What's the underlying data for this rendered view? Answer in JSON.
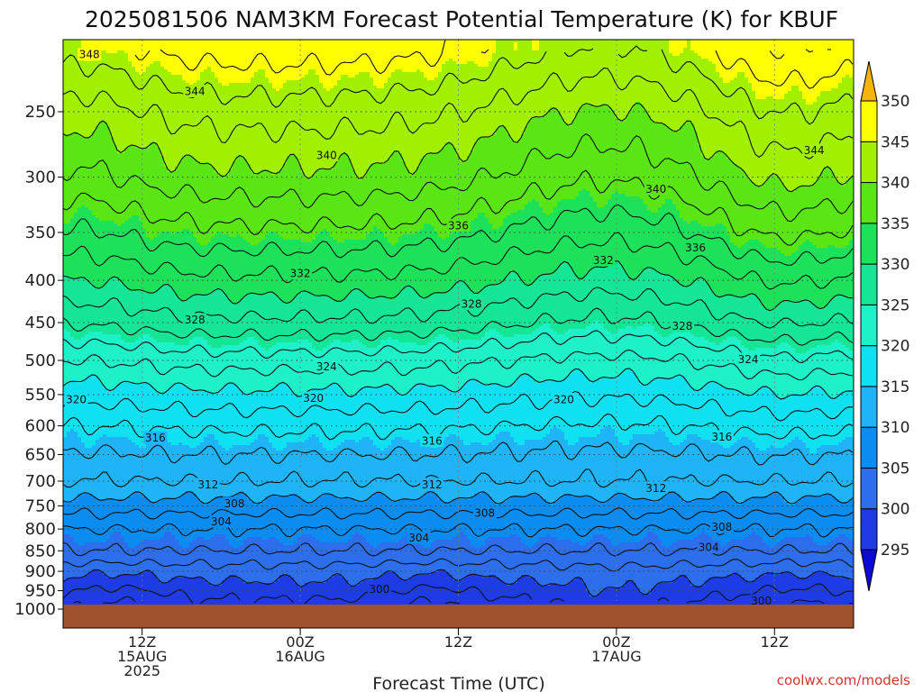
{
  "chart_data": {
    "type": "heatmap",
    "title": "2025081506 NAM3KM Forecast Potential Temperature (K) for KBUF",
    "xlabel": "Forecast Time (UTC)",
    "ylabel": "",
    "credit": "coolwx.com/models",
    "y_axis": {
      "scale": "pressure (hPa), inverted",
      "ticks": [
        "250",
        "300",
        "350",
        "400",
        "450",
        "500",
        "550",
        "600",
        "650",
        "700",
        "750",
        "800",
        "850",
        "900",
        "950",
        "1000"
      ],
      "ylim": [
        1000,
        210
      ]
    },
    "x_axis": {
      "ticks": [
        {
          "hour": 12,
          "lines": [
            "12Z",
            "15AUG",
            "2025"
          ]
        },
        {
          "hour": 24,
          "lines": [
            "00Z",
            "16AUG"
          ]
        },
        {
          "hour": 36,
          "lines": [
            "12Z"
          ]
        },
        {
          "hour": 48,
          "lines": [
            "00Z",
            "17AUG"
          ]
        },
        {
          "hour": 60,
          "lines": [
            "12Z"
          ]
        }
      ],
      "xlim_hours": [
        6,
        66
      ]
    },
    "colorbar": {
      "ticks": [
        "295",
        "300",
        "305",
        "310",
        "315",
        "320",
        "325",
        "330",
        "335",
        "340",
        "345",
        "350"
      ],
      "levels": [
        295,
        300,
        305,
        310,
        315,
        320,
        325,
        330,
        335,
        340,
        345,
        350
      ],
      "colors": [
        "#0a0ad2",
        "#1e3ce6",
        "#2d6eec",
        "#0a8cf0",
        "#1eb4f5",
        "#0fe1f0",
        "#1ef0c8",
        "#14e696",
        "#1ee15a",
        "#5ae614",
        "#a0f000",
        "#ffff00",
        "#f5b40a"
      ]
    },
    "contour_labels": [
      {
        "text": "348",
        "h": 8,
        "p": 213
      },
      {
        "text": "344",
        "h": 16,
        "p": 236
      },
      {
        "text": "340",
        "h": 26,
        "p": 282
      },
      {
        "text": "340",
        "h": 51,
        "p": 310
      },
      {
        "text": "344",
        "h": 63,
        "p": 278
      },
      {
        "text": "336",
        "h": 36,
        "p": 343
      },
      {
        "text": "336",
        "h": 54,
        "p": 365
      },
      {
        "text": "332",
        "h": 24,
        "p": 392
      },
      {
        "text": "332",
        "h": 47,
        "p": 378
      },
      {
        "text": "328",
        "h": 16,
        "p": 446
      },
      {
        "text": "328",
        "h": 37,
        "p": 427
      },
      {
        "text": "328",
        "h": 53,
        "p": 454
      },
      {
        "text": "324",
        "h": 26,
        "p": 508
      },
      {
        "text": "324",
        "h": 58,
        "p": 498
      },
      {
        "text": "320",
        "h": 7,
        "p": 557
      },
      {
        "text": "320",
        "h": 25,
        "p": 555
      },
      {
        "text": "320",
        "h": 44,
        "p": 557
      },
      {
        "text": "316",
        "h": 13,
        "p": 620
      },
      {
        "text": "316",
        "h": 34,
        "p": 625
      },
      {
        "text": "316",
        "h": 56,
        "p": 618
      },
      {
        "text": "312",
        "h": 17,
        "p": 706
      },
      {
        "text": "312",
        "h": 34,
        "p": 706
      },
      {
        "text": "312",
        "h": 51,
        "p": 713
      },
      {
        "text": "308",
        "h": 19,
        "p": 744
      },
      {
        "text": "308",
        "h": 38,
        "p": 764
      },
      {
        "text": "308",
        "h": 56,
        "p": 795
      },
      {
        "text": "304",
        "h": 18,
        "p": 783
      },
      {
        "text": "304",
        "h": 33,
        "p": 819
      },
      {
        "text": "304",
        "h": 55,
        "p": 841
      },
      {
        "text": "300",
        "h": 30,
        "p": 945
      },
      {
        "text": "300",
        "h": 59,
        "p": 976
      }
    ],
    "grid": "dotted"
  }
}
